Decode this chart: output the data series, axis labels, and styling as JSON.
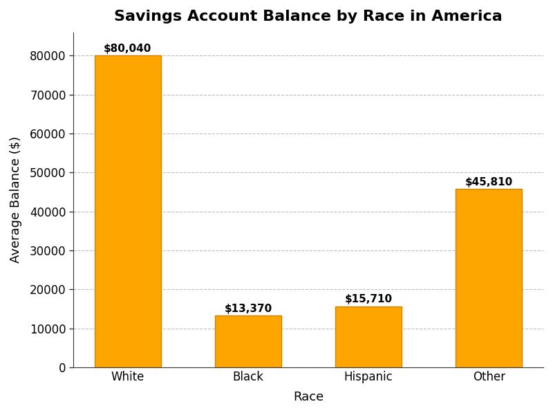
{
  "title": "Savings Account Balance by Race in America",
  "xlabel": "Race",
  "ylabel": "Average Balance ($)",
  "categories": [
    "White",
    "Black",
    "Hispanic",
    "Other"
  ],
  "values": [
    80040,
    13370,
    15710,
    45810
  ],
  "bar_color": "#FFA500",
  "bar_edgecolor": "#CC8400",
  "label_format": [
    "$80,040",
    "$13,370",
    "$15,710",
    "$45,810"
  ],
  "ylim": [
    0,
    86000
  ],
  "yticks": [
    0,
    10000,
    20000,
    30000,
    40000,
    50000,
    60000,
    70000,
    80000
  ],
  "background_color": "#FFFFFF",
  "grid_color": "#BBBBBB",
  "title_fontsize": 16,
  "axis_label_fontsize": 13,
  "tick_fontsize": 12,
  "annotation_fontsize": 11,
  "bar_width": 0.55
}
